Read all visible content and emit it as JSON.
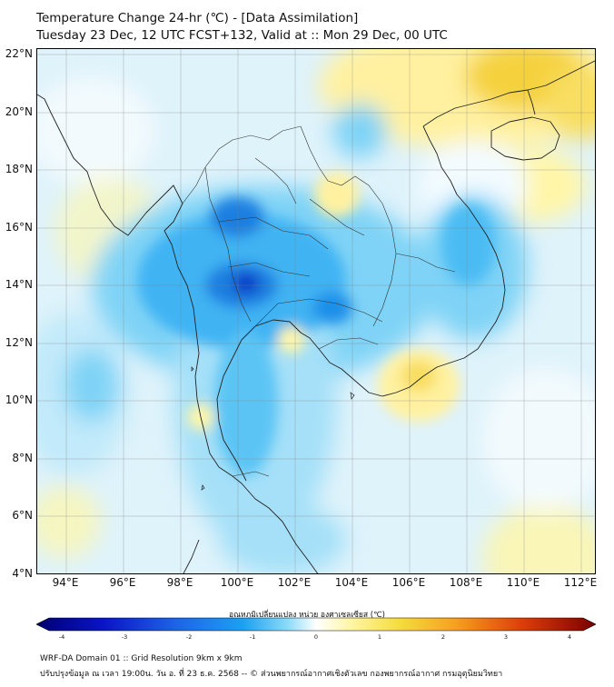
{
  "title": {
    "line1": "Temperature Change 24-hr (℃) - [Data Assimilation]",
    "line2": "Tuesday 23 Dec, 12 UTC FCST+132, Valid at :: Mon 29 Dec, 00 UTC"
  },
  "map": {
    "lat_labels": [
      "22°N",
      "20°N",
      "18°N",
      "16°N",
      "14°N",
      "12°N",
      "10°N",
      "8°N",
      "6°N",
      "4°N"
    ],
    "lon_labels": [
      "94°E",
      "96°E",
      "98°E",
      "100°E",
      "102°E",
      "104°E",
      "106°E",
      "108°E",
      "110°E",
      "112°E"
    ],
    "lat_range": [
      4,
      22.2
    ],
    "lon_range": [
      93,
      112.5
    ]
  },
  "colorbar": {
    "title": "อุณหภูมิเปลี่ยนแปลง หน่วย องศาเซลเซียส (℃)",
    "ticks": [
      "-4",
      "-3",
      "-2",
      "-1",
      "0",
      "1",
      "2",
      "3",
      "4"
    ],
    "range": [
      -4,
      4
    ]
  },
  "footer": {
    "line1": "WRF-DA Domain 01 :: Grid Resolution 9km x 9km",
    "line2": "ปรับปรุงข้อมูล ณ เวลา 19:00น. วัน อ. ที่ 23 ธ.ค. 2568 -- © ส่วนพยากรณ์อากาศเชิงตัวเลข กองพยากรณ์อากาศ กรมอุตุนิยมวิทยา"
  },
  "colors": {
    "cold_strong": "#0a14c8",
    "cold": "#1e9bf0",
    "cool": "#7fd3f6",
    "neutral": "#ffffff",
    "warm_light": "#fff6a8",
    "warm": "#f5d23c",
    "hot": "#c81e0a"
  }
}
